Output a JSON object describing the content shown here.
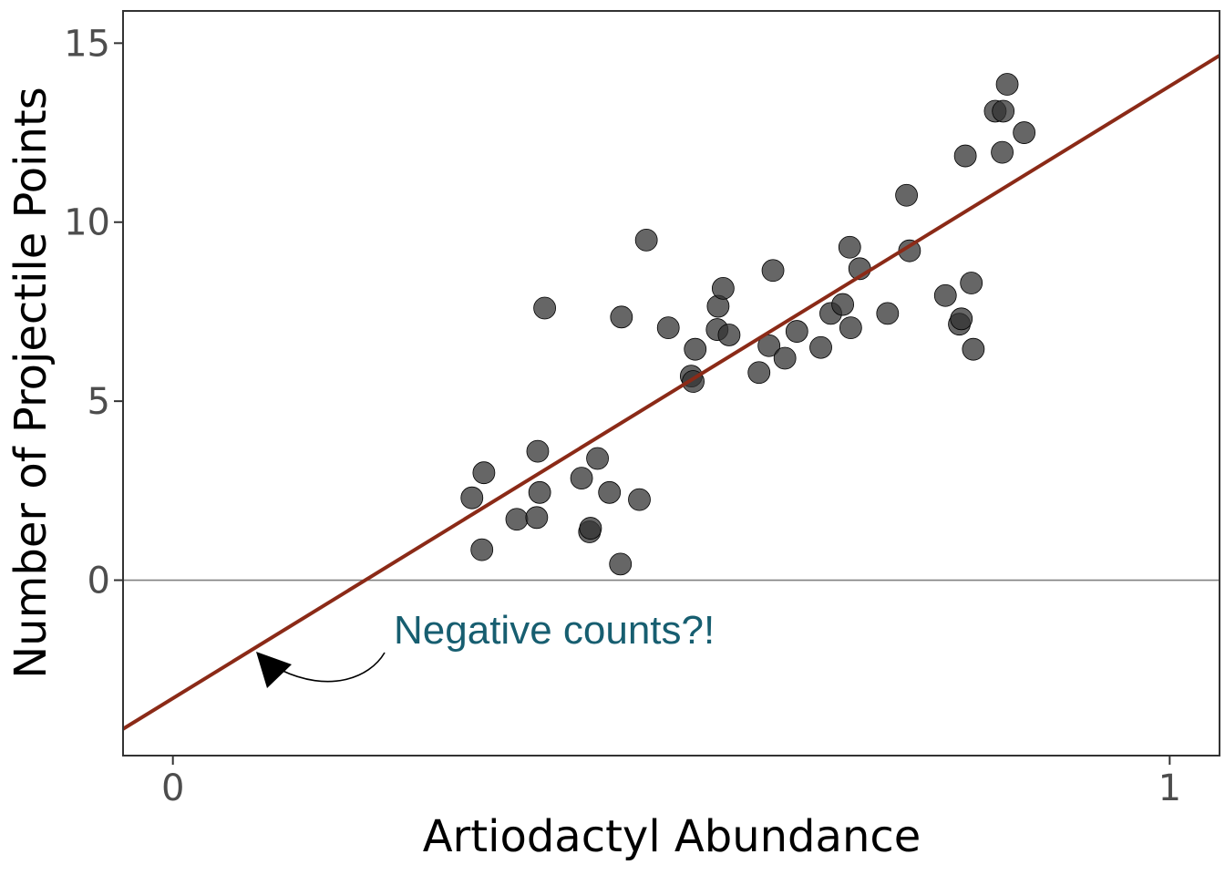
{
  "chart_data": {
    "type": "scatter",
    "xlabel": "Artiodactyl Abundance",
    "ylabel": "Number of Projectile Points",
    "xlim": [
      -0.05,
      1.05
    ],
    "ylim": [
      -4.9,
      15.9
    ],
    "x_ticks": [
      {
        "value": 0,
        "label": "0"
      },
      {
        "value": 1,
        "label": "1"
      }
    ],
    "y_ticks": [
      {
        "value": 0,
        "label": "0"
      },
      {
        "value": 5,
        "label": "5"
      },
      {
        "value": 10,
        "label": "10"
      },
      {
        "value": 15,
        "label": "15"
      }
    ],
    "grid": false,
    "reference_line": {
      "y": 0,
      "color": "#808080"
    },
    "regression_line": {
      "intercept": -3.3,
      "slope": 17.1,
      "color": "#8b2a17"
    },
    "points": [
      {
        "x": 0.3,
        "y": 2.3
      },
      {
        "x": 0.31,
        "y": 0.85
      },
      {
        "x": 0.312,
        "y": 3.0
      },
      {
        "x": 0.345,
        "y": 1.7
      },
      {
        "x": 0.365,
        "y": 1.75
      },
      {
        "x": 0.366,
        "y": 3.6
      },
      {
        "x": 0.368,
        "y": 2.45
      },
      {
        "x": 0.373,
        "y": 7.6
      },
      {
        "x": 0.41,
        "y": 2.85
      },
      {
        "x": 0.418,
        "y": 1.35
      },
      {
        "x": 0.419,
        "y": 1.45
      },
      {
        "x": 0.426,
        "y": 3.4
      },
      {
        "x": 0.438,
        "y": 2.45
      },
      {
        "x": 0.449,
        "y": 0.45
      },
      {
        "x": 0.45,
        "y": 7.35
      },
      {
        "x": 0.468,
        "y": 2.25
      },
      {
        "x": 0.475,
        "y": 9.5
      },
      {
        "x": 0.497,
        "y": 7.05
      },
      {
        "x": 0.52,
        "y": 5.7
      },
      {
        "x": 0.522,
        "y": 5.55
      },
      {
        "x": 0.524,
        "y": 6.45
      },
      {
        "x": 0.546,
        "y": 7.0
      },
      {
        "x": 0.547,
        "y": 7.65
      },
      {
        "x": 0.552,
        "y": 8.15
      },
      {
        "x": 0.558,
        "y": 6.85
      },
      {
        "x": 0.588,
        "y": 5.8
      },
      {
        "x": 0.598,
        "y": 6.55
      },
      {
        "x": 0.602,
        "y": 8.65
      },
      {
        "x": 0.614,
        "y": 6.2
      },
      {
        "x": 0.626,
        "y": 6.95
      },
      {
        "x": 0.65,
        "y": 6.5
      },
      {
        "x": 0.66,
        "y": 7.45
      },
      {
        "x": 0.672,
        "y": 7.7
      },
      {
        "x": 0.679,
        "y": 9.3
      },
      {
        "x": 0.68,
        "y": 7.05
      },
      {
        "x": 0.689,
        "y": 8.7
      },
      {
        "x": 0.717,
        "y": 7.45
      },
      {
        "x": 0.736,
        "y": 10.75
      },
      {
        "x": 0.739,
        "y": 9.2
      },
      {
        "x": 0.775,
        "y": 7.95
      },
      {
        "x": 0.789,
        "y": 7.15
      },
      {
        "x": 0.791,
        "y": 7.3
      },
      {
        "x": 0.795,
        "y": 11.85
      },
      {
        "x": 0.801,
        "y": 8.3
      },
      {
        "x": 0.803,
        "y": 6.45
      },
      {
        "x": 0.825,
        "y": 13.1
      },
      {
        "x": 0.832,
        "y": 11.95
      },
      {
        "x": 0.833,
        "y": 13.1
      },
      {
        "x": 0.837,
        "y": 13.85
      },
      {
        "x": 0.854,
        "y": 12.5
      }
    ],
    "annotation": {
      "text": "Negative counts?!",
      "color": "#175e70"
    }
  }
}
